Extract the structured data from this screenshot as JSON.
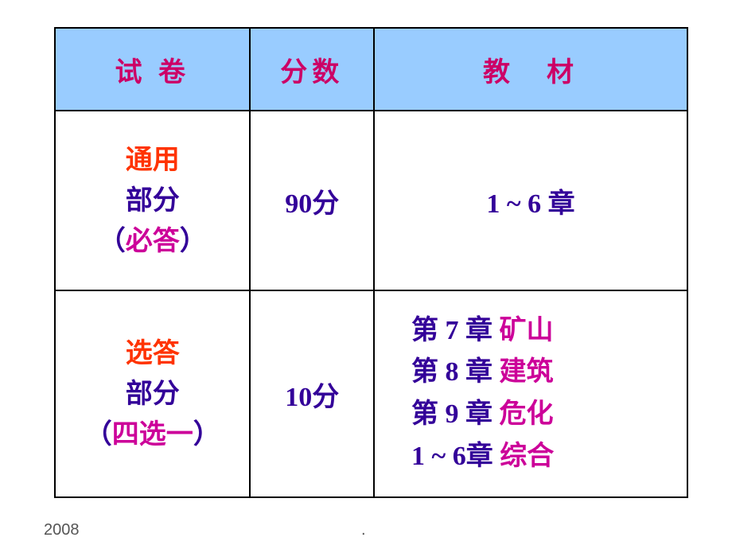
{
  "table": {
    "header": {
      "col1": "试 卷",
      "col2": "分数",
      "col3": "教　材"
    },
    "row1": {
      "col1_line1": "通用",
      "col1_line2": "部分",
      "col1_line3_open": "（",
      "col1_line3_text": "必答",
      "col1_line3_close": "）",
      "col2": "90分",
      "col3": "1 ~ 6 章"
    },
    "row2": {
      "col1_line1": "选答",
      "col1_line2": "部分",
      "col1_line3_open": "（",
      "col1_line3_text": "四选一",
      "col1_line3_close": "）",
      "col2": "10分",
      "col3_line1_a": "第 7 章 ",
      "col3_line1_b": "矿山",
      "col3_line2_a": "第 8 章 ",
      "col3_line2_b": "建筑",
      "col3_line3_a": "第 9 章 ",
      "col3_line3_b": "危化",
      "col3_line4_a": "1 ~ 6章 ",
      "col3_line4_b": "综合"
    }
  },
  "footer": {
    "year": "2008",
    "dot": "."
  },
  "colors": {
    "header_bg": "#99ccff",
    "header_text": "#cc0066",
    "orange": "#ff3300",
    "purple": "#330099",
    "magenta": "#cc0099",
    "border": "#000000",
    "background": "#ffffff"
  }
}
